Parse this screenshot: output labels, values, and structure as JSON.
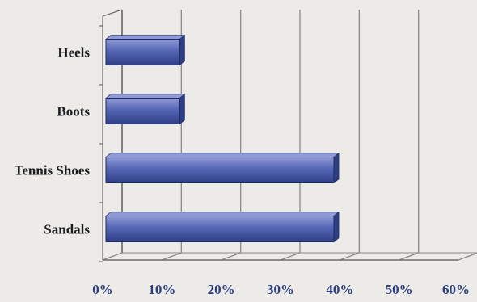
{
  "chart_data": {
    "type": "bar",
    "orientation": "horizontal",
    "categories": [
      "Heels",
      "Boots",
      "Tennis Shoes",
      "Sandals"
    ],
    "values": [
      13,
      13,
      39,
      39
    ],
    "xlim": [
      0,
      60
    ],
    "x_ticks": [
      "0%",
      "10%",
      "20%",
      "30%",
      "40%",
      "50%",
      "60%"
    ],
    "unit": "%",
    "title": "",
    "xlabel": "",
    "ylabel": "",
    "grid": true,
    "legend": "none",
    "colors": {
      "bar_top": "#8f9ad6",
      "bar_mid": "#5566b4",
      "bar_bottom": "#2f3f86",
      "axis": "#6e6e6e",
      "gridline": "#8a8a8a",
      "tick_label": "#2b3d7e",
      "category_label": "#1d1d1f",
      "background": "#ecebe8"
    }
  }
}
